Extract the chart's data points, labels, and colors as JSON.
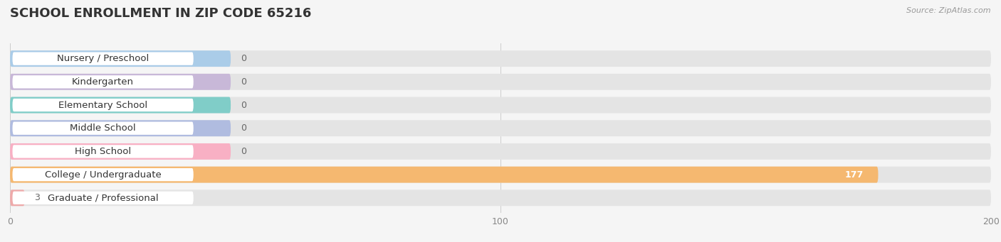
{
  "title": "SCHOOL ENROLLMENT IN ZIP CODE 65216",
  "source": "Source: ZipAtlas.com",
  "categories": [
    "Nursery / Preschool",
    "Kindergarten",
    "Elementary School",
    "Middle School",
    "High School",
    "College / Undergraduate",
    "Graduate / Professional"
  ],
  "values": [
    0,
    0,
    0,
    0,
    0,
    177,
    3
  ],
  "bar_colors": [
    "#aacce8",
    "#c8b8d8",
    "#80cdc8",
    "#b0bce0",
    "#f8b0c4",
    "#f5b870",
    "#eeaaaa"
  ],
  "bg_color": "#f5f5f5",
  "bar_bg_color": "#e4e4e4",
  "white_label_bg": "#ffffff",
  "xlim_data": [
    0,
    200
  ],
  "x_max_display": 220,
  "xticks": [
    0,
    100,
    200
  ],
  "title_fontsize": 13,
  "label_fontsize": 9.5,
  "value_fontsize": 9,
  "value_color_inside": "#ffffff",
  "value_color_outside": "#666666"
}
